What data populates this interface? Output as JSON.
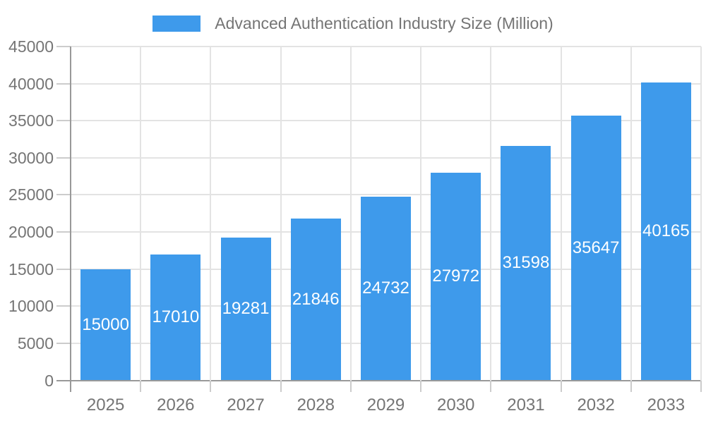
{
  "chart_data": {
    "type": "bar",
    "title": "Advanced Authentication Industry Size (Million)",
    "series_name": "Advanced Authentication Industry Size (Million)",
    "categories": [
      "2025",
      "2026",
      "2027",
      "2028",
      "2029",
      "2030",
      "2031",
      "2032",
      "2033"
    ],
    "values": [
      15000,
      17010,
      19281,
      21846,
      24732,
      27972,
      31598,
      35647,
      40165
    ],
    "y_ticks": [
      0,
      5000,
      10000,
      15000,
      20000,
      25000,
      30000,
      35000,
      40000,
      45000
    ],
    "ylim": [
      0,
      45000
    ],
    "xlabel": "",
    "ylabel": "",
    "grid": true,
    "legend_position": "top",
    "colors": {
      "bar": "#3E9AEB",
      "bar_label_text": "#FFFFFF",
      "axis_text": "#757575",
      "gridline": "#E3E3E3",
      "axis_line": "#999999",
      "tick": "#CCCCCC",
      "background": "#FFFFFF"
    }
  }
}
